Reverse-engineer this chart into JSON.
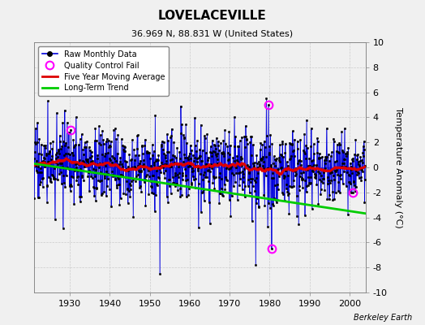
{
  "title": "LOVELACEVILLE",
  "subtitle": "36.969 N, 88.831 W (United States)",
  "ylabel": "Temperature Anomaly (°C)",
  "xlabel_note": "Berkeley Earth",
  "ylim": [
    -10,
    10
  ],
  "xlim": [
    1921,
    2004
  ],
  "xticks": [
    1930,
    1940,
    1950,
    1960,
    1970,
    1980,
    1990,
    2000
  ],
  "yticks": [
    -10,
    -8,
    -6,
    -4,
    -2,
    0,
    2,
    4,
    6,
    8,
    10
  ],
  "bg_color": "#f0f0f0",
  "plot_bg_color": "#f0f0f0",
  "line_color": "#0000dd",
  "moving_avg_color": "#dd0000",
  "trend_color": "#00cc00",
  "qc_fail_color": "#ff00ff",
  "marker_color": "#000000",
  "seed": 17,
  "start_year": 1921,
  "end_year": 2003,
  "n_months": 996
}
